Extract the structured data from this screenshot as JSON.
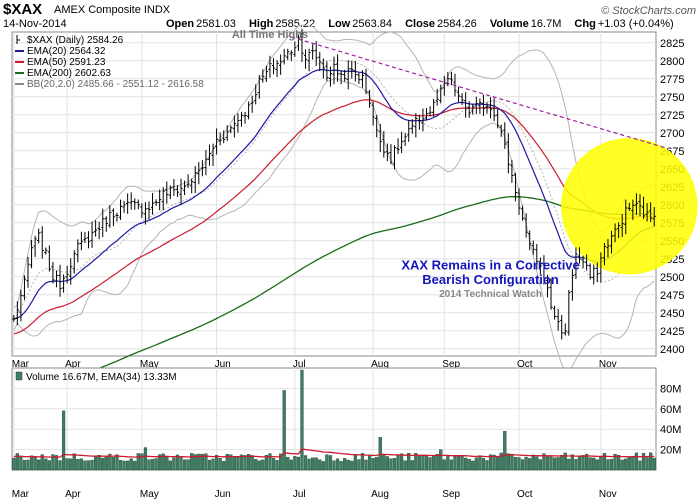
{
  "header": {
    "symbol": "$XAX",
    "name": "AMEX Composite INDX",
    "date": "14-Nov-2014",
    "open_label": "Open",
    "open": "2581.03",
    "high_label": "High",
    "high": "2585.22",
    "low_label": "Low",
    "low": "2563.84",
    "close_label": "Close",
    "close": "2584.26",
    "volume_label": "Volume",
    "volume": "16.7M",
    "chg_label": "Chg",
    "chg": "+1.03 (+0.04%)",
    "brand": "© StockCharts.com"
  },
  "colors": {
    "price_bars": "#000000",
    "ema20": "#1a1aa6",
    "ema50": "#cc1a2e",
    "ema200": "#1a6b1a",
    "bollinger": "#b4b4b4",
    "trendline": "#a020a0",
    "highlight": "#ffff00",
    "volume_bars": "#3e7d62",
    "volume_ema": "#cc1a2e",
    "annotation": "#1515bf"
  },
  "chart_data": [
    {
      "type": "ohlc",
      "title": "$XAX (Daily) 2584.26",
      "legend": [
        {
          "label": "$XAX (Daily) 2584.26",
          "color": "#000000"
        },
        {
          "label": "EMA(20) 2564.32",
          "color": "#1a1aa6"
        },
        {
          "label": "EMA(50) 2591.23",
          "color": "#cc1a2e"
        },
        {
          "label": "EMA(200) 2602.63",
          "color": "#1a6b1a"
        },
        {
          "label": "BB(20,2.0) 2485.66 - 2551.12 - 2616.58",
          "color": "#888888"
        }
      ],
      "legend_position": "top-left",
      "ylim": [
        2390,
        2840
      ],
      "y_scale": "linear",
      "yticks": [
        2400,
        2425,
        2450,
        2475,
        2500,
        2525,
        2550,
        2575,
        2600,
        2625,
        2650,
        2675,
        2700,
        2725,
        2750,
        2775,
        2800,
        2825
      ],
      "x_month_labels": [
        {
          "label": "Mar",
          "day": 0
        },
        {
          "label": "Apr",
          "day": 15
        },
        {
          "label": "May",
          "day": 36
        },
        {
          "label": "Jun",
          "day": 57
        },
        {
          "label": "Jul",
          "day": 79
        },
        {
          "label": "Aug",
          "day": 101
        },
        {
          "label": "Sep",
          "day": 121
        },
        {
          "label": "Oct",
          "day": 142
        },
        {
          "label": "Nov",
          "day": 165
        }
      ],
      "grid": true,
      "key_prices": [
        [
          0,
          2440
        ],
        [
          3,
          2490
        ],
        [
          5,
          2540
        ],
        [
          7,
          2555
        ],
        [
          9,
          2530
        ],
        [
          11,
          2500
        ],
        [
          13,
          2490
        ],
        [
          15,
          2510
        ],
        [
          18,
          2540
        ],
        [
          21,
          2555
        ],
        [
          24,
          2570
        ],
        [
          27,
          2585
        ],
        [
          30,
          2595
        ],
        [
          33,
          2600
        ],
        [
          36,
          2595
        ],
        [
          39,
          2600
        ],
        [
          42,
          2615
        ],
        [
          45,
          2620
        ],
        [
          48,
          2625
        ],
        [
          51,
          2640
        ],
        [
          54,
          2660
        ],
        [
          57,
          2690
        ],
        [
          60,
          2700
        ],
        [
          63,
          2720
        ],
        [
          66,
          2735
        ],
        [
          69,
          2770
        ],
        [
          72,
          2790
        ],
        [
          75,
          2800
        ],
        [
          78,
          2815
        ],
        [
          80,
          2830
        ],
        [
          82,
          2805
        ],
        [
          84,
          2810
        ],
        [
          86,
          2800
        ],
        [
          88,
          2780
        ],
        [
          90,
          2790
        ],
        [
          92,
          2780
        ],
        [
          95,
          2785
        ],
        [
          98,
          2775
        ],
        [
          100,
          2745
        ],
        [
          102,
          2700
        ],
        [
          104,
          2680
        ],
        [
          106,
          2665
        ],
        [
          108,
          2680
        ],
        [
          111,
          2700
        ],
        [
          114,
          2720
        ],
        [
          117,
          2730
        ],
        [
          120,
          2755
        ],
        [
          122,
          2775
        ],
        [
          124,
          2760
        ],
        [
          126,
          2740
        ],
        [
          128,
          2730
        ],
        [
          130,
          2735
        ],
        [
          133,
          2740
        ],
        [
          135,
          2730
        ],
        [
          137,
          2700
        ],
        [
          139,
          2660
        ],
        [
          141,
          2620
        ],
        [
          143,
          2580
        ],
        [
          145,
          2540
        ],
        [
          147,
          2525
        ],
        [
          149,
          2500
        ],
        [
          151,
          2460
        ],
        [
          153,
          2435
        ],
        [
          155,
          2420
        ],
        [
          156,
          2480
        ],
        [
          158,
          2530
        ],
        [
          160,
          2520
        ],
        [
          162,
          2500
        ],
        [
          164,
          2510
        ],
        [
          166,
          2540
        ],
        [
          168,
          2555
        ],
        [
          170,
          2570
        ],
        [
          172,
          2590
        ],
        [
          174,
          2600
        ],
        [
          176,
          2595
        ],
        [
          178,
          2584
        ]
      ],
      "annotations": [
        {
          "text": "All Time Highs",
          "at": [
            72,
            2832
          ]
        },
        {
          "text": "XAX Remains in a Corrective",
          "at": [
            134,
            2510
          ]
        },
        {
          "text": "Bearish Configuration",
          "at": [
            134,
            2490
          ]
        },
        {
          "text": "2014 Technical Watch",
          "at": [
            134,
            2472
          ]
        }
      ],
      "trendline": {
        "from": [
          78,
          2833
        ],
        "to": [
          184,
          2678
        ]
      },
      "highlight_circle": {
        "center": [
          173,
          2598
        ],
        "radius_days": 10
      }
    },
    {
      "type": "bar",
      "title": "Volume 16.67M, EMA(34) 13.33M",
      "legend": [
        {
          "label": "Volume 16.67M, EMA(34) 13.33M",
          "color": "#3e7d62"
        }
      ],
      "ylim": [
        0,
        100
      ],
      "y_unit": "M",
      "yticks": [
        20,
        40,
        60,
        80
      ],
      "ytick_labels": [
        "20M",
        "40M",
        "60M",
        "80M"
      ],
      "baseline_volume": 14,
      "ema_volume": 13.3,
      "spikes": [
        {
          "day": 14,
          "value": 58
        },
        {
          "day": 37,
          "value": 22
        },
        {
          "day": 76,
          "value": 78
        },
        {
          "day": 81,
          "value": 98
        },
        {
          "day": 103,
          "value": 32
        },
        {
          "day": 120,
          "value": 20
        },
        {
          "day": 138,
          "value": 38
        },
        {
          "day": 179,
          "value": 17
        }
      ]
    }
  ]
}
